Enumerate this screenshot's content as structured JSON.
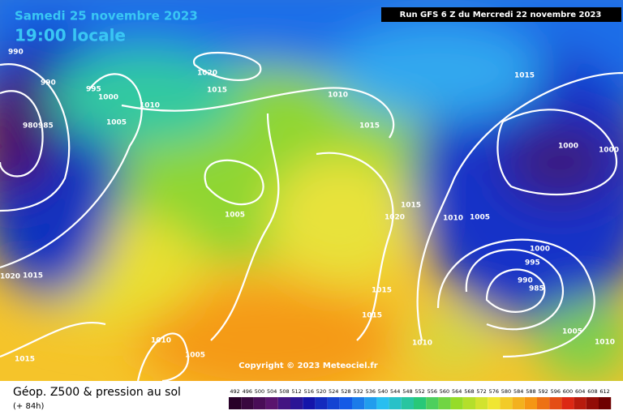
{
  "header": {
    "date": "Samedi 25 novembre 2023",
    "time": "19:00 locale",
    "run": "Run GFS 6 Z du Mercredi 22 novembre 2023"
  },
  "copyright": "Copyright © 2023 Meteociel.fr",
  "legend": {
    "title": "Géop. Z500 & pression au sol",
    "lead": "(+ 84h)",
    "scale": [
      492,
      496,
      500,
      504,
      508,
      512,
      516,
      520,
      524,
      528,
      532,
      536,
      540,
      544,
      548,
      552,
      556,
      560,
      564,
      568,
      572,
      576,
      580,
      584,
      588,
      592,
      596,
      600,
      604,
      608,
      612
    ]
  },
  "pressure_labels": [
    990,
    990,
    995,
    1000,
    1005,
    980,
    985,
    1010,
    1020,
    1015,
    1010,
    1015,
    1005,
    1000,
    1000,
    1015,
    1020,
    1010,
    1005,
    1000,
    995,
    990,
    985,
    1015,
    1015,
    1010,
    1005,
    1015,
    1020,
    1015,
    1010,
    1005,
    1010,
    1015
  ]
}
